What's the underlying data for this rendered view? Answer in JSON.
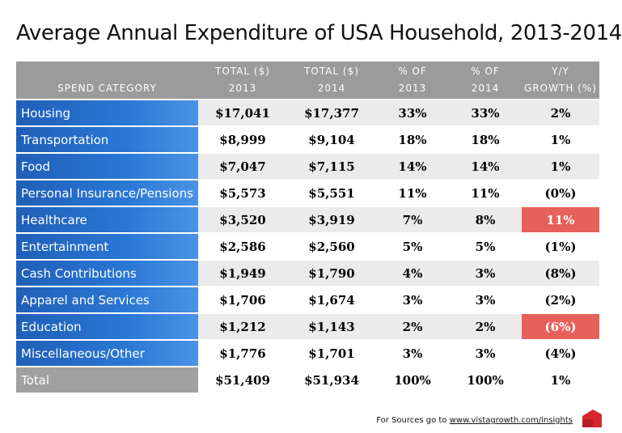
{
  "title": "Average Annual Expenditure of USA Household, 2013-2014",
  "chart_data": {
    "type": "table",
    "title": "Average Annual Expenditure of USA Household, 2013-2014",
    "columns": [
      {
        "key": "category",
        "line1": "",
        "line2": "SPEND CATEGORY"
      },
      {
        "key": "total_2013",
        "line1": "TOTAL ($)",
        "line2": "2013"
      },
      {
        "key": "total_2014",
        "line1": "TOTAL ($)",
        "line2": "2014"
      },
      {
        "key": "pct_2013",
        "line1": "% OF",
        "line2": "2013"
      },
      {
        "key": "pct_2014",
        "line1": "% OF",
        "line2": "2014"
      },
      {
        "key": "yy_growth",
        "line1": "Y/Y",
        "line2": "GROWTH (%)"
      }
    ],
    "rows": [
      {
        "category": "Housing",
        "total_2013": "$17,041",
        "total_2014": "$17,377",
        "pct_2013": "33%",
        "pct_2014": "33%",
        "yy_growth": "2%",
        "highlight": false
      },
      {
        "category": "Transportation",
        "total_2013": "$8,999",
        "total_2014": "$9,104",
        "pct_2013": "18%",
        "pct_2014": "18%",
        "yy_growth": "1%",
        "highlight": false
      },
      {
        "category": "Food",
        "total_2013": "$7,047",
        "total_2014": "$7,115",
        "pct_2013": "14%",
        "pct_2014": "14%",
        "yy_growth": "1%",
        "highlight": false
      },
      {
        "category": "Personal Insurance/Pensions",
        "total_2013": "$5,573",
        "total_2014": "$5,551",
        "pct_2013": "11%",
        "pct_2014": "11%",
        "yy_growth": "(0%)",
        "highlight": false
      },
      {
        "category": "Healthcare",
        "total_2013": "$3,520",
        "total_2014": "$3,919",
        "pct_2013": "7%",
        "pct_2014": "8%",
        "yy_growth": "11%",
        "highlight": true
      },
      {
        "category": "Entertainment",
        "total_2013": "$2,586",
        "total_2014": "$2,560",
        "pct_2013": "5%",
        "pct_2014": "5%",
        "yy_growth": "(1%)",
        "highlight": false
      },
      {
        "category": "Cash Contributions",
        "total_2013": "$1,949",
        "total_2014": "$1,790",
        "pct_2013": "4%",
        "pct_2014": "3%",
        "yy_growth": "(8%)",
        "highlight": false
      },
      {
        "category": "Apparel and Services",
        "total_2013": "$1,706",
        "total_2014": "$1,674",
        "pct_2013": "3%",
        "pct_2014": "3%",
        "yy_growth": "(2%)",
        "highlight": false
      },
      {
        "category": "Education",
        "total_2013": "$1,212",
        "total_2014": "$1,143",
        "pct_2013": "2%",
        "pct_2014": "2%",
        "yy_growth": "(6%)",
        "highlight": true
      },
      {
        "category": "Miscellaneous/Other",
        "total_2013": "$1,776",
        "total_2014": "$1,701",
        "pct_2013": "3%",
        "pct_2014": "3%",
        "yy_growth": "(4%)",
        "highlight": false
      }
    ],
    "total": {
      "category": "Total",
      "total_2013": "$51,409",
      "total_2014": "$51,934",
      "pct_2013": "100%",
      "pct_2014": "100%",
      "yy_growth": "1%"
    }
  },
  "colors": {
    "header_bg": "#9b9b9b",
    "label_blue": "#2a77d4",
    "highlight_red": "#e8605a",
    "stripe": "#ebebeb"
  },
  "footer": {
    "prefix": "For Sources go to ",
    "link": "www.vistagrowth.com/insights"
  },
  "logo": {
    "icon": "vistagrowth-logo-icon"
  }
}
